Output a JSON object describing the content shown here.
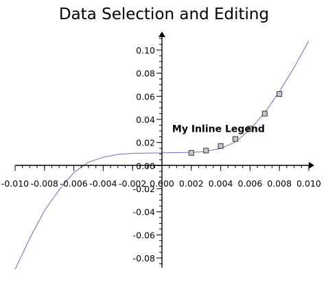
{
  "chart_data": {
    "type": "line",
    "title": "Data Selection and Editing",
    "xlim": [
      -0.01,
      0.01
    ],
    "ylim": [
      -0.09,
      0.11
    ],
    "x_ticks": [
      "-0.010",
      "-0.008",
      "-0.006",
      "-0.004",
      "-0.002",
      "0.000",
      "0.002",
      "0.004",
      "0.006",
      "0.008",
      "0.010"
    ],
    "y_ticks": [
      "0.10",
      "0.08",
      "0.06",
      "0.04",
      "0.02",
      "0.00",
      "-0.02",
      "-0.04",
      "-0.06",
      "-0.08"
    ],
    "x_tick_values": [
      -0.01,
      -0.008,
      -0.006,
      -0.004,
      -0.002,
      0.0,
      0.002,
      0.004,
      0.006,
      0.008,
      0.01
    ],
    "y_tick_values": [
      0.1,
      0.08,
      0.06,
      0.04,
      0.02,
      0.0,
      -0.02,
      -0.04,
      -0.06,
      -0.08
    ],
    "curve": {
      "x": [
        -0.01,
        -0.009,
        -0.008,
        -0.007,
        -0.006,
        -0.005,
        -0.004,
        -0.003,
        -0.002,
        -0.001,
        0.0,
        0.001,
        0.002,
        0.003,
        0.004,
        0.005,
        0.006,
        0.007,
        0.008,
        0.009,
        0.01
      ],
      "y": [
        -0.09,
        -0.063,
        -0.039,
        -0.021,
        -0.006,
        0.003,
        0.0072,
        0.0097,
        0.0106,
        0.0108,
        0.011,
        0.0112,
        0.0114,
        0.0123,
        0.0148,
        0.0205,
        0.031,
        0.046,
        0.064,
        0.085,
        0.108
      ],
      "color": "#6b6bb8"
    },
    "markers": {
      "x": [
        0.002,
        0.003,
        0.004,
        0.005,
        0.006,
        0.007,
        0.008
      ],
      "y": [
        0.011,
        0.013,
        0.017,
        0.023,
        0.032,
        0.045,
        0.062
      ],
      "fill": "#c8c8c8",
      "stroke": "#333333"
    },
    "inline_legend": {
      "text": "My Inline Legend",
      "x": 0.0028,
      "y": 0.026
    }
  }
}
